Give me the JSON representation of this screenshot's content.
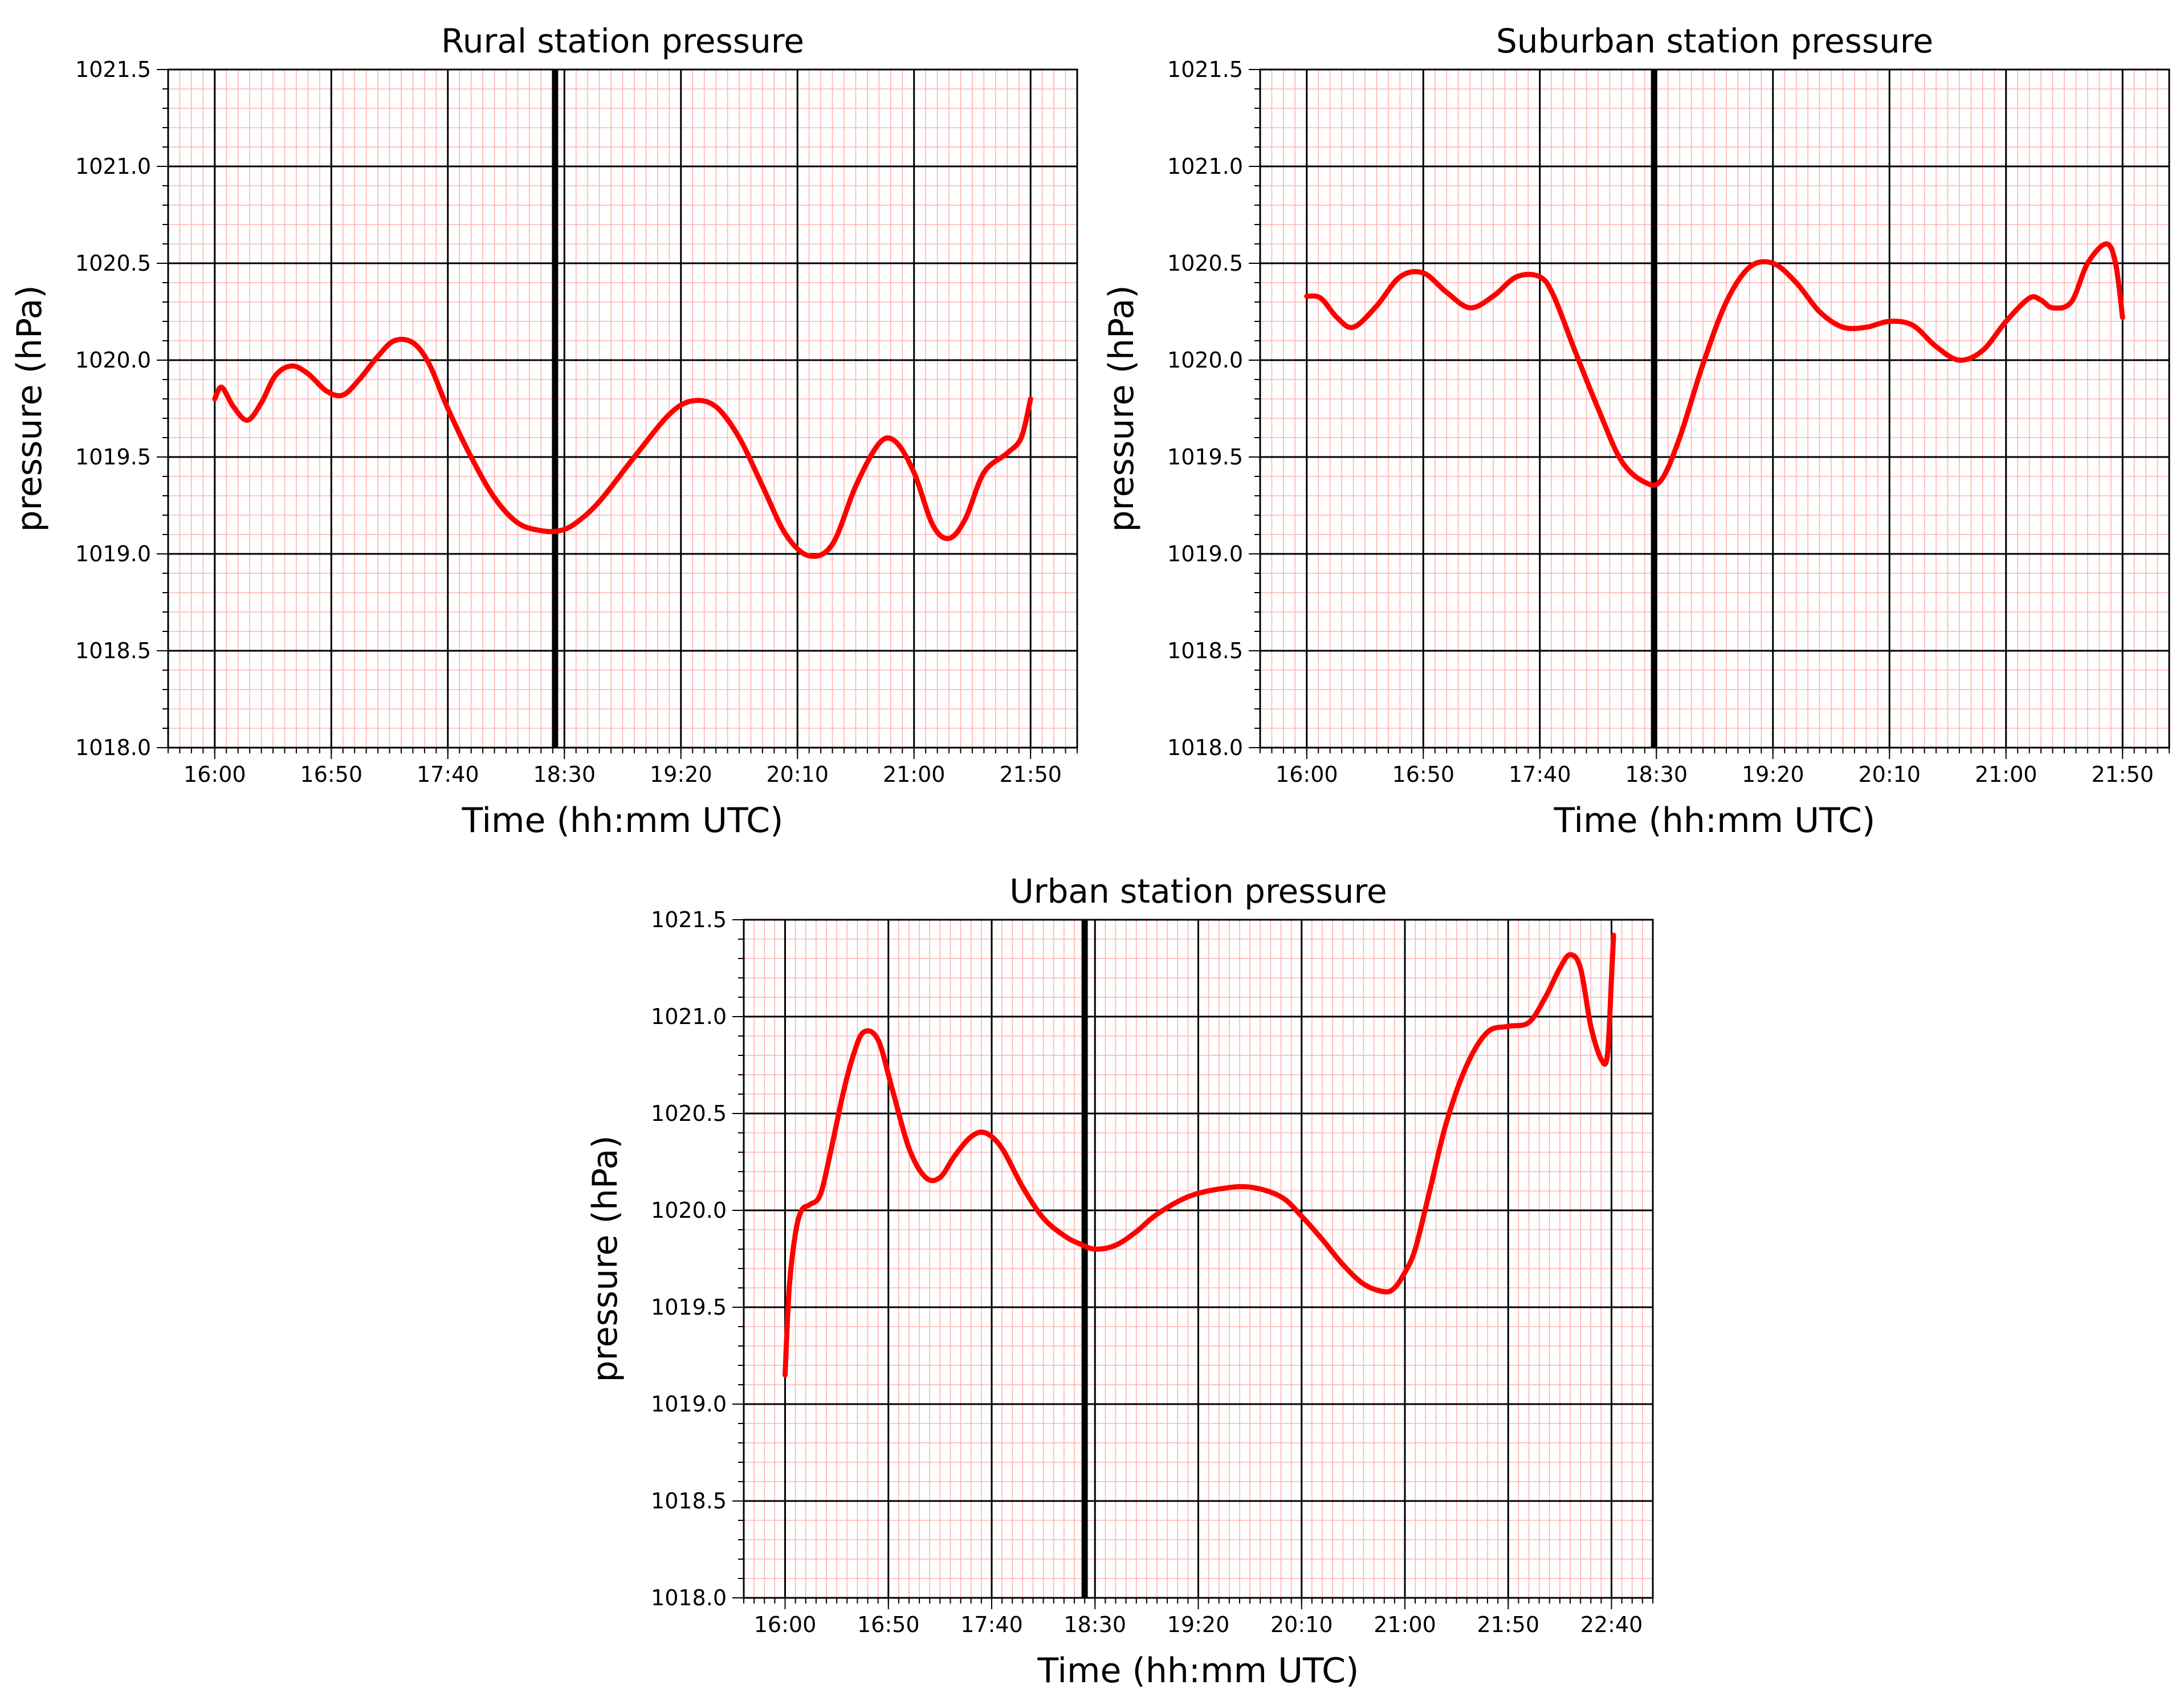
{
  "chart_data": [
    {
      "type": "line",
      "title": "Rural station pressure",
      "xlabel": "Time (hh:mm UTC)",
      "ylabel": "pressure (hPa)",
      "ylim": [
        1018.0,
        1021.5
      ],
      "xlim_minutes_utc": [
        940,
        1330
      ],
      "yticks": [
        "1018.0",
        "1018.5",
        "1019.0",
        "1019.5",
        "1020.0",
        "1020.5",
        "1021.0",
        "1021.5"
      ],
      "xticks": [
        "16:00",
        "16:50",
        "17:40",
        "18:30",
        "19:20",
        "20:10",
        "21:00",
        "21:50"
      ],
      "xtick_minutes_utc": [
        960,
        1010,
        1060,
        1110,
        1160,
        1210,
        1260,
        1310
      ],
      "reference_line_utc": "18:26",
      "reference_line_minutes_utc": 1106,
      "series": [
        {
          "color": "#ff0000",
          "x_utc": [
            "16:00",
            "16:03",
            "16:08",
            "16:14",
            "16:20",
            "16:26",
            "16:33",
            "16:40",
            "16:48",
            "16:55",
            "17:02",
            "17:10",
            "17:17",
            "17:25",
            "17:32",
            "17:40",
            "17:50",
            "18:00",
            "18:10",
            "18:20",
            "18:28",
            "18:35",
            "18:45",
            "19:00",
            "19:15",
            "19:25",
            "19:35",
            "19:45",
            "19:55",
            "20:05",
            "20:15",
            "20:25",
            "20:35",
            "20:45",
            "20:52",
            "21:00",
            "21:08",
            "21:15",
            "21:22",
            "21:30",
            "21:40",
            "21:46",
            "21:50"
          ],
          "x_minutes_utc": [
            960,
            963,
            968,
            974,
            980,
            986,
            993,
            1000,
            1008,
            1015,
            1022,
            1030,
            1037,
            1045,
            1052,
            1060,
            1070,
            1080,
            1090,
            1100,
            1108,
            1115,
            1125,
            1140,
            1155,
            1165,
            1175,
            1185,
            1195,
            1205,
            1215,
            1225,
            1235,
            1245,
            1252,
            1260,
            1268,
            1275,
            1282,
            1290,
            1300,
            1306,
            1310
          ],
          "y": [
            1019.8,
            1019.86,
            1019.76,
            1019.69,
            1019.78,
            1019.92,
            1019.97,
            1019.93,
            1019.84,
            1019.82,
            1019.9,
            1020.02,
            1020.1,
            1020.09,
            1019.98,
            1019.75,
            1019.5,
            1019.29,
            1019.16,
            1019.12,
            1019.12,
            1019.16,
            1019.27,
            1019.5,
            1019.72,
            1019.79,
            1019.76,
            1019.6,
            1019.35,
            1019.1,
            1018.99,
            1019.05,
            1019.35,
            1019.57,
            1019.58,
            1019.42,
            1019.15,
            1019.08,
            1019.18,
            1019.42,
            1019.52,
            1019.6,
            1019.8
          ]
        }
      ]
    },
    {
      "type": "line",
      "title": "Suburban station pressure",
      "xlabel": "Time (hh:mm UTC)",
      "ylabel": "pressure (hPa)",
      "ylim": [
        1018.0,
        1021.5
      ],
      "xlim_minutes_utc": [
        940,
        1330
      ],
      "yticks": [
        "1018.0",
        "1018.5",
        "1019.0",
        "1019.5",
        "1020.0",
        "1020.5",
        "1021.0",
        "1021.5"
      ],
      "xticks": [
        "16:00",
        "16:50",
        "17:40",
        "18:30",
        "19:20",
        "20:10",
        "21:00",
        "21:50"
      ],
      "xtick_minutes_utc": [
        960,
        1010,
        1060,
        1110,
        1160,
        1210,
        1260,
        1310
      ],
      "reference_line_utc": "18:29",
      "reference_line_minutes_utc": 1109,
      "series": [
        {
          "color": "#ff0000",
          "x_utc": [
            "16:00",
            "16:06",
            "16:13",
            "16:20",
            "16:30",
            "16:40",
            "16:50",
            "17:00",
            "17:10",
            "17:20",
            "17:30",
            "17:40",
            "17:46",
            "17:55",
            "18:05",
            "18:15",
            "18:25",
            "18:32",
            "18:40",
            "18:50",
            "19:00",
            "19:10",
            "19:20",
            "19:30",
            "19:40",
            "19:50",
            "20:00",
            "20:10",
            "20:20",
            "20:30",
            "20:40",
            "20:50",
            "21:00",
            "21:10",
            "21:15",
            "21:20",
            "21:28",
            "21:35",
            "21:43",
            "21:47",
            "21:50"
          ],
          "x_minutes_utc": [
            960,
            966,
            973,
            980,
            990,
            1000,
            1010,
            1020,
            1030,
            1040,
            1050,
            1060,
            1066,
            1075,
            1085,
            1095,
            1105,
            1112,
            1120,
            1130,
            1140,
            1150,
            1160,
            1170,
            1180,
            1190,
            1200,
            1210,
            1220,
            1230,
            1240,
            1250,
            1260,
            1270,
            1275,
            1280,
            1288,
            1295,
            1303,
            1307,
            1310
          ],
          "y": [
            1020.33,
            1020.32,
            1020.22,
            1020.17,
            1020.28,
            1020.43,
            1020.45,
            1020.35,
            1020.27,
            1020.33,
            1020.43,
            1020.43,
            1020.33,
            1020.05,
            1019.75,
            1019.48,
            1019.37,
            1019.38,
            1019.6,
            1019.98,
            1020.3,
            1020.48,
            1020.5,
            1020.4,
            1020.25,
            1020.17,
            1020.17,
            1020.2,
            1020.18,
            1020.07,
            1020.0,
            1020.05,
            1020.2,
            1020.32,
            1020.31,
            1020.27,
            1020.3,
            1020.5,
            1020.6,
            1020.5,
            1020.22
          ]
        }
      ]
    },
    {
      "type": "line",
      "title": "Urban station pressure",
      "xlabel": "Time (hh:mm UTC)",
      "ylabel": "pressure (hPa)",
      "ylim": [
        1018.0,
        1021.5
      ],
      "xlim_minutes_utc": [
        940,
        1380
      ],
      "yticks": [
        "1018.0",
        "1018.5",
        "1019.0",
        "1019.5",
        "1020.0",
        "1020.5",
        "1021.0",
        "1021.5"
      ],
      "xticks": [
        "16:00",
        "16:50",
        "17:40",
        "18:30",
        "19:20",
        "20:10",
        "21:00",
        "21:50",
        "22:40"
      ],
      "xtick_minutes_utc": [
        960,
        1010,
        1060,
        1110,
        1160,
        1210,
        1260,
        1310,
        1360
      ],
      "reference_line_utc": "18:25",
      "reference_line_minutes_utc": 1105,
      "series": [
        {
          "color": "#ff0000",
          "x_utc": [
            "16:00",
            "16:02",
            "16:05",
            "16:08",
            "16:12",
            "16:17",
            "16:22",
            "16:28",
            "16:33",
            "16:38",
            "16:45",
            "16:52",
            "17:00",
            "17:08",
            "17:15",
            "17:22",
            "17:30",
            "17:37",
            "17:45",
            "17:55",
            "18:05",
            "18:15",
            "18:22",
            "18:30",
            "18:40",
            "18:50",
            "19:00",
            "19:15",
            "19:30",
            "19:45",
            "20:00",
            "20:10",
            "20:20",
            "20:30",
            "20:40",
            "20:50",
            "20:55",
            "21:00",
            "21:05",
            "21:12",
            "21:20",
            "21:30",
            "21:40",
            "21:50",
            "22:00",
            "22:08",
            "22:15",
            "22:20",
            "22:25",
            "22:30",
            "22:35",
            "22:38",
            "22:40",
            "22:41"
          ],
          "x_minutes_utc": [
            960,
            962,
            965,
            968,
            972,
            977,
            982,
            988,
            993,
            998,
            1005,
            1012,
            1020,
            1028,
            1035,
            1042,
            1050,
            1057,
            1065,
            1075,
            1085,
            1095,
            1102,
            1110,
            1120,
            1130,
            1140,
            1155,
            1170,
            1185,
            1200,
            1210,
            1220,
            1230,
            1240,
            1250,
            1255,
            1260,
            1265,
            1272,
            1280,
            1290,
            1300,
            1310,
            1320,
            1328,
            1335,
            1340,
            1345,
            1350,
            1355,
            1358,
            1360,
            1361
          ],
          "y": [
            1019.15,
            1019.6,
            1019.88,
            1020.0,
            1020.03,
            1020.08,
            1020.3,
            1020.6,
            1020.8,
            1020.92,
            1020.88,
            1020.62,
            1020.32,
            1020.17,
            1020.17,
            1020.28,
            1020.38,
            1020.4,
            1020.32,
            1020.12,
            1019.96,
            1019.87,
            1019.83,
            1019.8,
            1019.82,
            1019.89,
            1019.98,
            1020.07,
            1020.11,
            1020.12,
            1020.07,
            1019.97,
            1019.85,
            1019.72,
            1019.62,
            1019.58,
            1019.6,
            1019.68,
            1019.8,
            1020.1,
            1020.45,
            1020.75,
            1020.92,
            1020.95,
            1020.97,
            1021.1,
            1021.25,
            1021.32,
            1021.25,
            1020.95,
            1020.78,
            1020.8,
            1021.2,
            1021.42
          ]
        }
      ]
    }
  ]
}
